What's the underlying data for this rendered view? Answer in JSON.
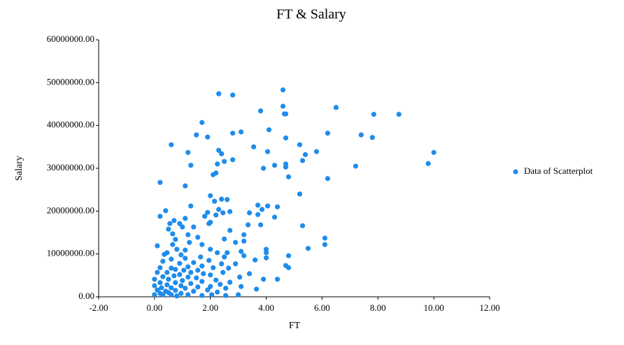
{
  "chart_data": {
    "type": "scatter",
    "title": "FT & Salary",
    "x_label": "FT",
    "y_label": "Salary",
    "legend": "right",
    "grid": false,
    "xlim": [
      -2,
      12
    ],
    "xticks": [
      {
        "value": -2,
        "label": "-2.00"
      },
      {
        "value": 0,
        "label": "0.00"
      },
      {
        "value": 2,
        "label": "2.00"
      },
      {
        "value": 4,
        "label": "4.00"
      },
      {
        "value": 6,
        "label": "6.00"
      },
      {
        "value": 8,
        "label": "8.00"
      },
      {
        "value": 10,
        "label": "10.00"
      },
      {
        "value": 12,
        "label": "12.00"
      }
    ],
    "ylim": [
      0,
      60000000
    ],
    "yticks": [
      {
        "value": 0,
        "label": "0.00"
      },
      {
        "value": 10000000,
        "label": "10000000.00"
      },
      {
        "value": 20000000,
        "label": "20000000.00"
      },
      {
        "value": 30000000,
        "label": "30000000.00"
      },
      {
        "value": 40000000,
        "label": "40000000.00"
      },
      {
        "value": 50000000,
        "label": "50000000.00"
      },
      {
        "value": 60000000,
        "label": "60000000.00"
      }
    ],
    "series": [
      {
        "name": "Data of Scatterplot",
        "color": "#1f8ceb",
        "x": [
          2.3,
          2.8,
          4.6,
          4.6,
          4.65,
          4.7,
          3.8,
          6.5,
          7.85,
          8.75,
          1.7,
          4.1,
          3.1,
          2.8,
          6.2,
          7.4,
          7.8,
          1.5,
          1.9,
          4.7,
          0.6,
          3.55,
          5.2,
          5.8,
          5.4,
          1.2,
          2.3,
          2.4,
          4.05,
          10.0,
          9.8,
          7.2,
          5.3,
          4.7,
          4.7,
          4.3,
          3.9,
          2.25,
          2.5,
          2.8,
          1.3,
          2.1,
          2.2,
          4.8,
          6.2,
          0.2,
          1.1,
          5.2,
          2.0,
          2.4,
          2.6,
          2.15,
          1.3,
          3.7,
          4.05,
          4.4,
          0.4,
          1.9,
          2.3,
          2.7,
          3.4,
          3.85,
          2.45,
          0.2,
          1.8,
          2.2,
          0.7,
          1.1,
          1.95,
          2.0,
          0.55,
          0.9,
          3.7,
          4.3,
          3.35,
          3.8,
          5.3,
          1.0,
          1.4,
          0.5,
          2.7,
          0.65,
          1.2,
          3.2,
          1.55,
          2.5,
          6.1,
          0.75,
          2.9,
          3.2,
          1.25,
          1.7,
          0.65,
          0.1,
          5.5,
          6.1,
          2.0,
          4.0,
          0.8,
          1.1,
          3.1,
          4.0,
          2.25,
          2.6,
          0.45,
          4.8,
          0.35,
          0.95,
          1.65,
          2.5,
          3.2,
          4.0,
          1.1,
          0.6,
          0.3,
          1.95,
          3.6,
          1.4,
          0.9,
          2.4,
          4.7,
          2.9,
          1.7,
          1.2,
          4.8,
          0.2,
          0.6,
          2.1,
          2.65,
          0.75,
          1.55,
          1.05,
          1.3,
          0.45,
          2.45,
          0.1,
          1.75,
          3.4,
          0.9,
          2.0,
          0.7,
          0.3,
          1.2,
          1.5,
          3.05,
          4.4,
          3.9,
          0.0,
          0.5,
          2.2,
          1.0,
          1.7,
          2.7,
          0.2,
          0.75,
          1.3,
          2.35,
          0.45,
          0.0,
          0.95,
          2.0,
          3.1,
          1.55,
          0.6,
          0.25,
          1.1,
          2.55,
          3.65,
          1.9,
          0.1,
          0.75,
          0.4,
          1.4,
          2.25,
          0.5,
          0.2,
          0.95,
          0.0,
          0.3,
          0.6,
          1.2,
          1.7,
          2.55,
          0.8,
          3.0,
          2.05
        ],
        "values": [
          47400000,
          47100000,
          48300000,
          44500000,
          42700000,
          42700000,
          43400000,
          44200000,
          42600000,
          42600000,
          40700000,
          39000000,
          38500000,
          38200000,
          38200000,
          37800000,
          37200000,
          37800000,
          37300000,
          37100000,
          35500000,
          35000000,
          35500000,
          33900000,
          33200000,
          33700000,
          34200000,
          33400000,
          33900000,
          33700000,
          31100000,
          30500000,
          31800000,
          31000000,
          30300000,
          30700000,
          30000000,
          31000000,
          31600000,
          32000000,
          30700000,
          28500000,
          28900000,
          28000000,
          27600000,
          26700000,
          25900000,
          24000000,
          23600000,
          22800000,
          22700000,
          22300000,
          21200000,
          21400000,
          21200000,
          21000000,
          20100000,
          19700000,
          20400000,
          19900000,
          19600000,
          20400000,
          19600000,
          18800000,
          18800000,
          19100000,
          17800000,
          18300000,
          17100000,
          17400000,
          17100000,
          17100000,
          19200000,
          18600000,
          16800000,
          16800000,
          16600000,
          16300000,
          16300000,
          15800000,
          15500000,
          14700000,
          14500000,
          14500000,
          13900000,
          13500000,
          13700000,
          13400000,
          12700000,
          13000000,
          12700000,
          12200000,
          12200000,
          11900000,
          11300000,
          12200000,
          11100000,
          11100000,
          11100000,
          10900000,
          10600000,
          10300000,
          10300000,
          10300000,
          10300000,
          9600000,
          9900000,
          9800000,
          9300000,
          9300000,
          9600000,
          9100000,
          9000000,
          8800000,
          8300000,
          8500000,
          8600000,
          8000000,
          7800000,
          7700000,
          7300000,
          7700000,
          7200000,
          7000000,
          6800000,
          6800000,
          6700000,
          6800000,
          6700000,
          6400000,
          6200000,
          6200000,
          5700000,
          5700000,
          5700000,
          5700000,
          5400000,
          5400000,
          5200000,
          5100000,
          4900000,
          4700000,
          4600000,
          4400000,
          4600000,
          4100000,
          4100000,
          4100000,
          4100000,
          3900000,
          3800000,
          3600000,
          3400000,
          3300000,
          3300000,
          3100000,
          2900000,
          2800000,
          2600000,
          2600000,
          2400000,
          2400000,
          2300000,
          2100000,
          2100000,
          2000000,
          2000000,
          1800000,
          1600000,
          1600000,
          1500000,
          1300000,
          1300000,
          1100000,
          1000000,
          800000,
          800000,
          500000,
          500000,
          500000,
          500000,
          300000,
          300000,
          200000,
          500000,
          500000
        ]
      }
    ]
  }
}
